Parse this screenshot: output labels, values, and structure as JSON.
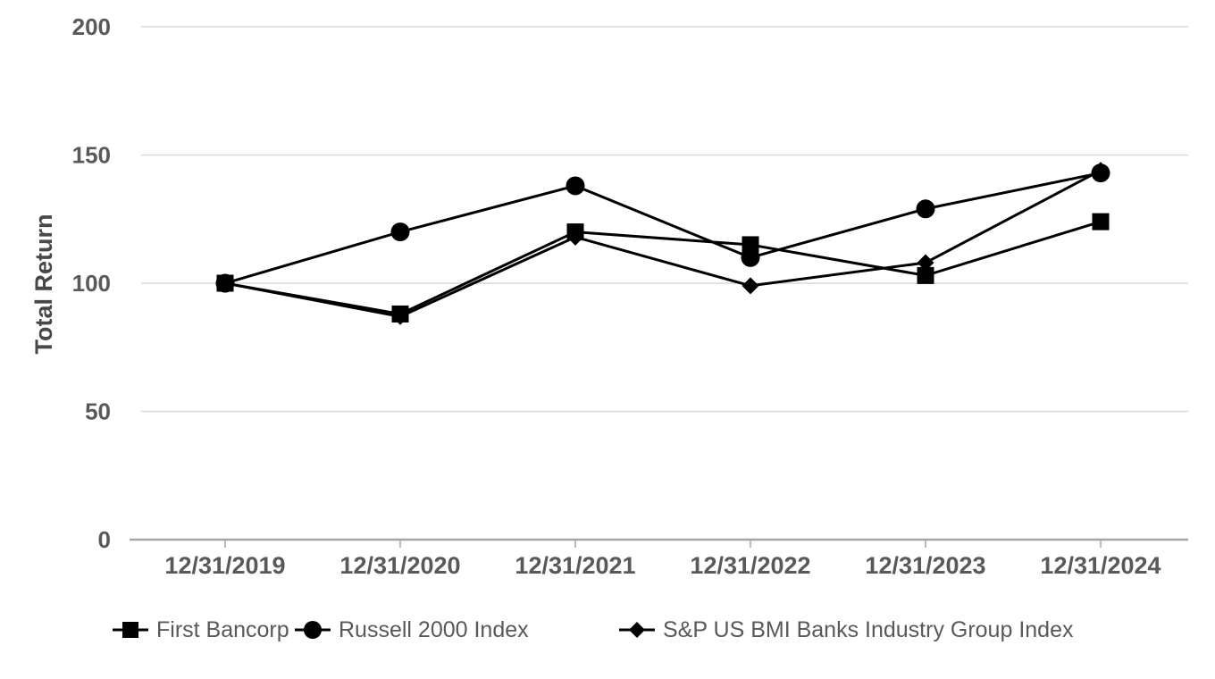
{
  "chart_data": {
    "type": "line",
    "title": "",
    "xlabel": "",
    "ylabel": "Total Return",
    "categories": [
      "12/31/2019",
      "12/31/2020",
      "12/31/2021",
      "12/31/2022",
      "12/31/2023",
      "12/31/2024"
    ],
    "yticks": [
      0,
      50,
      100,
      150,
      200
    ],
    "ylim": [
      0,
      200
    ],
    "grid": "horizontal-only",
    "legend_position": "bottom",
    "series": [
      {
        "name": "First Bancorp",
        "marker": "square",
        "values": [
          100,
          88,
          120,
          115,
          103,
          124
        ]
      },
      {
        "name": "Russell 2000 Index",
        "marker": "circle",
        "values": [
          100,
          120,
          138,
          110,
          129,
          143
        ]
      },
      {
        "name": "S&P US BMI Banks Industry Group Index",
        "marker": "diamond",
        "values": [
          100,
          87,
          118,
          99,
          108,
          144
        ]
      }
    ],
    "colors": {
      "series_line": "#000000",
      "marker_fill": "#000000",
      "gridline": "#d9d9d9",
      "axis_line": "#a6a6a6",
      "tick_label": "#595959",
      "axis_title": "#484848",
      "legend_text": "#595959",
      "background": "#ffffff"
    }
  }
}
